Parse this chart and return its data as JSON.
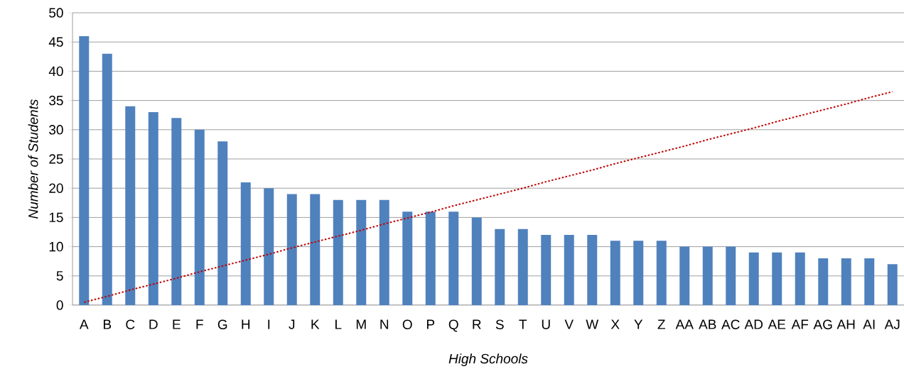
{
  "chart_data": {
    "type": "bar",
    "xlabel": "High Schools",
    "ylabel": "Number of Students",
    "categories": [
      "A",
      "B",
      "C",
      "D",
      "E",
      "F",
      "G",
      "H",
      "I",
      "J",
      "K",
      "L",
      "M",
      "N",
      "O",
      "P",
      "Q",
      "R",
      "S",
      "T",
      "U",
      "V",
      "W",
      "X",
      "Y",
      "Z",
      "AA",
      "AB",
      "AC",
      "AD",
      "AE",
      "AF",
      "AG",
      "AH",
      "AI",
      "AJ"
    ],
    "series": [
      {
        "color": "#4f81bd",
        "values": [
          46,
          43,
          34,
          33,
          32,
          30,
          28,
          21,
          20,
          19,
          19,
          18,
          18,
          18,
          16,
          16,
          16,
          15,
          13,
          13,
          12,
          12,
          12,
          11,
          11,
          11,
          10,
          10,
          10,
          9,
          9,
          9,
          8,
          8,
          8,
          7
        ]
      },
      {
        "type": "line",
        "color": "#c00000",
        "line_style": "dotted",
        "values": [
          0.5,
          1.5,
          2.6,
          3.6,
          4.6,
          5.7,
          6.7,
          7.7,
          8.7,
          9.8,
          10.8,
          11.8,
          12.8,
          13.9,
          14.9,
          15.9,
          17.0,
          18.0,
          19.0,
          20.0,
          21.1,
          22.1,
          23.1,
          24.2,
          25.2,
          26.2,
          27.2,
          28.3,
          29.3,
          30.3,
          31.4,
          32.4,
          33.4,
          34.4,
          35.5,
          36.5
        ]
      }
    ],
    "ylim": [
      0,
      50
    ],
    "yticks": [
      0,
      5,
      10,
      15,
      20,
      25,
      30,
      35,
      40,
      45,
      50
    ],
    "grid": "y"
  }
}
